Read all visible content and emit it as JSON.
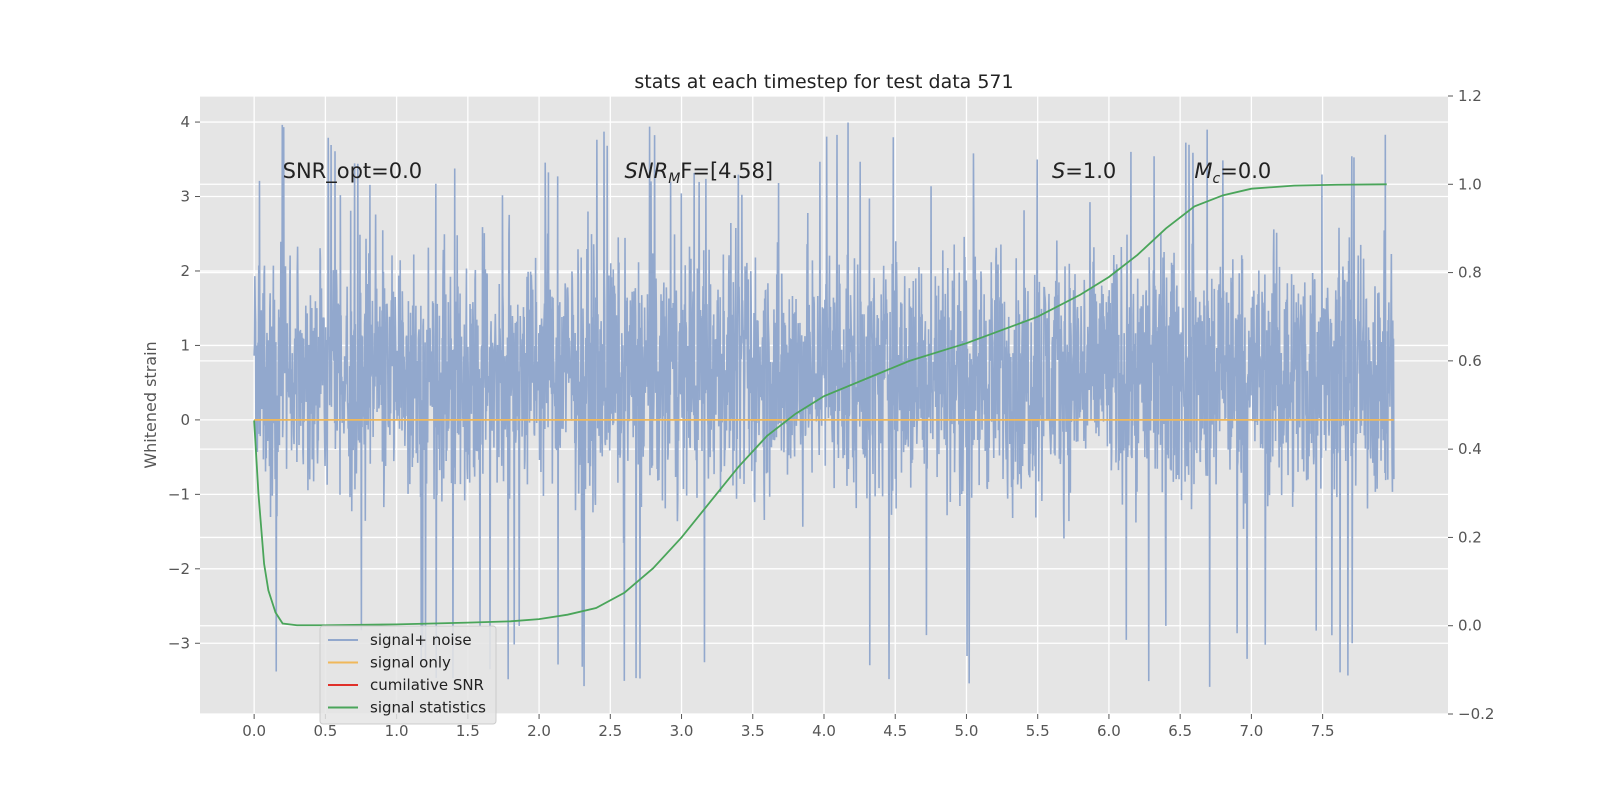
{
  "chart_data": {
    "type": "line",
    "title": "stats at each timestep for test data 571",
    "xlabel": "",
    "ylabel": "Whitened strain",
    "xlim": [
      -0.38,
      8.38
    ],
    "ylim": [
      -3.95,
      4.35
    ],
    "y2lim": [
      -0.2,
      1.2
    ],
    "grid": true,
    "legend_position": "lower-left",
    "xticks": [
      0.0,
      0.5,
      1.0,
      1.5,
      2.0,
      2.5,
      3.0,
      3.5,
      4.0,
      4.5,
      5.0,
      5.5,
      6.0,
      6.5,
      7.0,
      7.5
    ],
    "xtick_labels": [
      "0.0",
      "0.5",
      "1.0",
      "1.5",
      "2.0",
      "2.5",
      "3.0",
      "3.5",
      "4.0",
      "4.5",
      "5.0",
      "5.5",
      "6.0",
      "6.5",
      "7.0",
      "7.5"
    ],
    "yticks": [
      -3,
      -2,
      -1,
      0,
      1,
      2,
      3,
      4
    ],
    "ytick_labels": [
      "−3",
      "−2",
      "−1",
      "0",
      "1",
      "2",
      "3",
      "4"
    ],
    "y2ticks": [
      -0.2,
      0.0,
      0.2,
      0.4,
      0.6,
      0.8,
      1.0,
      1.2
    ],
    "y2tick_labels": [
      "−0.2",
      "0.0",
      "0.2",
      "0.4",
      "0.6",
      "0.8",
      "1.0",
      "1.2"
    ],
    "annotations": [
      {
        "name": "snr-opt",
        "text": "SNR_opt=0.0",
        "x": 0.2,
        "y": 3.25
      },
      {
        "name": "snr-mf",
        "text": "SNR",
        "sub": "M",
        "rest": "F=[4.58]",
        "italic": true,
        "x": 2.6,
        "y": 3.25
      },
      {
        "name": "s-value",
        "text": "S",
        "rest": "=1.0",
        "italic": true,
        "x": 5.6,
        "y": 3.25
      },
      {
        "name": "mc-value",
        "text": "M",
        "sub": "c",
        "rest": "=0.0",
        "italic": true,
        "x": 6.6,
        "y": 3.25
      }
    ],
    "series": [
      {
        "name": "signal+ noise",
        "color": "#92a8cd",
        "axis": "left",
        "style": "noise",
        "x_range": [
          0.0,
          8.0
        ],
        "y_min": -3.6,
        "y_max": 4.0,
        "typical_band": [
          -1.6,
          2.0
        ]
      },
      {
        "name": "signal only",
        "color": "#f0b85a",
        "axis": "left",
        "x": [
          0.0,
          8.0
        ],
        "y": [
          0.0,
          0.0
        ]
      },
      {
        "name": "cumilative SNR",
        "color": "#e0302a",
        "axis": "right",
        "x": [],
        "y": []
      },
      {
        "name": "signal statistics",
        "color": "#4aa55a",
        "axis": "right",
        "x": [
          0.0,
          0.03,
          0.07,
          0.1,
          0.15,
          0.2,
          0.3,
          0.5,
          1.0,
          1.5,
          1.8,
          2.0,
          2.2,
          2.4,
          2.6,
          2.8,
          3.0,
          3.2,
          3.4,
          3.6,
          3.8,
          4.0,
          4.3,
          4.6,
          5.0,
          5.5,
          5.8,
          6.0,
          6.2,
          6.4,
          6.6,
          6.8,
          7.0,
          7.3,
          7.6,
          7.95
        ],
        "y": [
          0.465,
          0.3,
          0.14,
          0.08,
          0.03,
          0.005,
          0.001,
          0.001,
          0.003,
          0.007,
          0.01,
          0.015,
          0.025,
          0.04,
          0.075,
          0.13,
          0.2,
          0.28,
          0.36,
          0.43,
          0.48,
          0.52,
          0.56,
          0.6,
          0.64,
          0.7,
          0.75,
          0.79,
          0.84,
          0.9,
          0.95,
          0.975,
          0.99,
          0.997,
          0.999,
          1.0
        ]
      }
    ]
  }
}
